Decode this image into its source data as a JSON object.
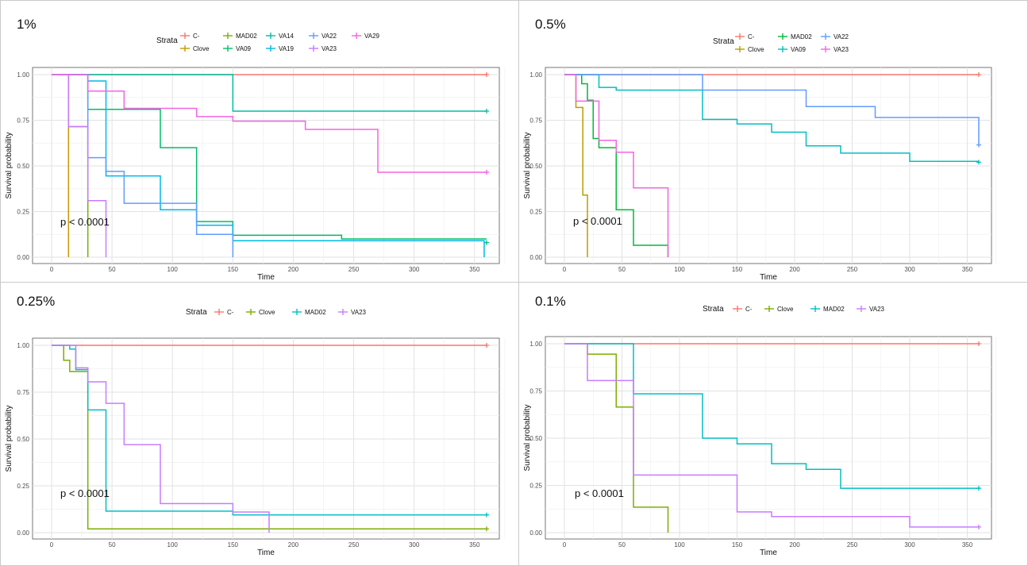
{
  "colors": {
    "C-": "#F8766D",
    "Clove": "#C49A00",
    "MAD02": "#53B400",
    "VA09": "#00C094",
    "VA14": "#00C094",
    "VA19": "#00B6EB",
    "VA22": "#619CFF",
    "VA23": "#DF68E0",
    "VA29": "#FB61D7"
  },
  "chart_data": [
    {
      "type": "line",
      "label": "1%",
      "xlabel": "Time",
      "ylabel": "Survival probability",
      "xlim": [
        0,
        360
      ],
      "ylim": [
        0,
        1
      ],
      "x_ticks": [
        0,
        50,
        100,
        150,
        200,
        250,
        300,
        350
      ],
      "y_ticks": [
        "0.00",
        "0.25",
        "0.50",
        "0.75",
        "1.00"
      ],
      "grid": true,
      "pvalue": "p < 0.0001",
      "legend_title": "Strata",
      "legend_position": "top",
      "legend_rows": [
        [
          "C-",
          "MAD02",
          "VA14",
          "VA22",
          "VA29"
        ],
        [
          "Clove",
          "VA09",
          "VA19",
          "VA23"
        ]
      ],
      "series": [
        {
          "name": "C-",
          "color": "#F8766D",
          "steps": [
            [
              0,
              1.0
            ],
            [
              360,
              1.0
            ]
          ],
          "censor": [
            360,
            1.0
          ]
        },
        {
          "name": "Clove",
          "color": "#C49A00",
          "steps": [
            [
              0,
              1.0
            ],
            [
              14,
              0.0
            ]
          ]
        },
        {
          "name": "MAD02",
          "color": "#7CAE00",
          "steps": [
            [
              0,
              1.0
            ],
            [
              14,
              0.715
            ],
            [
              30,
              0.0
            ]
          ]
        },
        {
          "name": "VA09",
          "color": "#00BE67",
          "steps": [
            [
              0,
              1.0
            ],
            [
              30,
              0.81
            ],
            [
              90,
              0.6
            ],
            [
              120,
              0.195
            ],
            [
              150,
              0.12
            ],
            [
              240,
              0.1
            ],
            [
              360,
              0.1
            ]
          ],
          "censor": [
            360,
            0.08
          ]
        },
        {
          "name": "VA14",
          "color": "#00BFA0",
          "steps": [
            [
              0,
              1.0
            ],
            [
              150,
              0.8
            ],
            [
              360,
              0.8
            ]
          ],
          "censor": [
            360,
            0.8
          ]
        },
        {
          "name": "VA19",
          "color": "#00B8E7",
          "steps": [
            [
              0,
              1.0
            ],
            [
              30,
              0.965
            ],
            [
              45,
              0.445
            ],
            [
              90,
              0.26
            ],
            [
              120,
              0.175
            ],
            [
              150,
              0.09
            ],
            [
              358,
              0.0
            ]
          ]
        },
        {
          "name": "VA22",
          "color": "#619CFF",
          "steps": [
            [
              0,
              1.0
            ],
            [
              30,
              0.545
            ],
            [
              45,
              0.47
            ],
            [
              60,
              0.295
            ],
            [
              120,
              0.125
            ],
            [
              150,
              0.0
            ]
          ]
        },
        {
          "name": "VA23",
          "color": "#C77CFF",
          "steps": [
            [
              0,
              1.0
            ],
            [
              14,
              0.715
            ],
            [
              30,
              0.31
            ],
            [
              45,
              0.0
            ]
          ]
        },
        {
          "name": "VA29",
          "color": "#F564E3",
          "steps": [
            [
              0,
              1.0
            ],
            [
              30,
              0.91
            ],
            [
              60,
              0.815
            ],
            [
              120,
              0.77
            ],
            [
              150,
              0.745
            ],
            [
              210,
              0.7
            ],
            [
              270,
              0.465
            ],
            [
              360,
              0.465
            ]
          ],
          "censor": [
            360,
            0.465
          ]
        }
      ]
    },
    {
      "type": "line",
      "label": "0.5%",
      "xlabel": "Time",
      "ylabel": "Survival probability",
      "xlim": [
        0,
        360
      ],
      "ylim": [
        0,
        1
      ],
      "x_ticks": [
        0,
        50,
        100,
        150,
        200,
        250,
        300,
        350
      ],
      "y_ticks": [
        "0.00",
        "0.25",
        "0.50",
        "0.75",
        "1.00"
      ],
      "grid": true,
      "pvalue": "p < 0.0001",
      "legend_title": "Strata",
      "legend_position": "top",
      "legend_rows": [
        [
          "C-",
          "MAD02",
          "VA22"
        ],
        [
          "Clove",
          "VA09",
          "VA23"
        ]
      ],
      "series": [
        {
          "name": "C-",
          "color": "#F8766D",
          "steps": [
            [
              0,
              1.0
            ],
            [
              360,
              1.0
            ]
          ],
          "censor": [
            360,
            1.0
          ]
        },
        {
          "name": "Clove",
          "color": "#B79F00",
          "steps": [
            [
              0,
              1.0
            ],
            [
              10,
              0.82
            ],
            [
              16,
              0.34
            ],
            [
              20,
              0.0
            ]
          ]
        },
        {
          "name": "MAD02",
          "color": "#00BA38",
          "steps": [
            [
              0,
              1.0
            ],
            [
              15,
              0.95
            ],
            [
              20,
              0.86
            ],
            [
              25,
              0.65
            ],
            [
              30,
              0.6
            ],
            [
              45,
              0.26
            ],
            [
              60,
              0.065
            ],
            [
              90,
              0.0
            ]
          ]
        },
        {
          "name": "VA09",
          "color": "#00BFC4",
          "steps": [
            [
              0,
              1.0
            ],
            [
              30,
              0.93
            ],
            [
              45,
              0.915
            ],
            [
              120,
              0.755
            ],
            [
              150,
              0.73
            ],
            [
              180,
              0.685
            ],
            [
              210,
              0.61
            ],
            [
              240,
              0.57
            ],
            [
              300,
              0.525
            ],
            [
              360,
              0.525
            ]
          ],
          "censor": [
            360,
            0.52
          ]
        },
        {
          "name": "VA22",
          "color": "#619CFF",
          "steps": [
            [
              0,
              1.0
            ],
            [
              120,
              0.915
            ],
            [
              210,
              0.825
            ],
            [
              270,
              0.765
            ],
            [
              360,
              0.615
            ]
          ],
          "censor": [
            360,
            0.615
          ]
        },
        {
          "name": "VA23",
          "color": "#F564E3",
          "steps": [
            [
              0,
              1.0
            ],
            [
              10,
              0.855
            ],
            [
              30,
              0.64
            ],
            [
              45,
              0.575
            ],
            [
              60,
              0.38
            ],
            [
              90,
              0.0
            ]
          ]
        }
      ]
    },
    {
      "type": "line",
      "label": "0.25%",
      "xlabel": "Time",
      "ylabel": "Survival probability",
      "xlim": [
        0,
        360
      ],
      "ylim": [
        0,
        1
      ],
      "x_ticks": [
        0,
        50,
        100,
        150,
        200,
        250,
        300,
        350
      ],
      "y_ticks": [
        "0.00",
        "0.25",
        "0.50",
        "0.75",
        "1.00"
      ],
      "grid": true,
      "pvalue": "p < 0.0001",
      "legend_title": "Strata",
      "legend_position": "top",
      "legend_rows": [
        [
          "C-",
          "Clove",
          "MAD02",
          "VA23"
        ]
      ],
      "series": [
        {
          "name": "C-",
          "color": "#F8766D",
          "steps": [
            [
              0,
              1.0
            ],
            [
              360,
              1.0
            ]
          ],
          "censor": [
            360,
            1.0
          ]
        },
        {
          "name": "Clove",
          "color": "#7CAE00",
          "steps": [
            [
              0,
              1.0
            ],
            [
              10,
              0.92
            ],
            [
              15,
              0.86
            ],
            [
              30,
              0.02
            ],
            [
              360,
              0.02
            ]
          ],
          "censor": [
            360,
            0.02
          ]
        },
        {
          "name": "MAD02",
          "color": "#00BFC4",
          "steps": [
            [
              0,
              1.0
            ],
            [
              15,
              0.98
            ],
            [
              20,
              0.87
            ],
            [
              30,
              0.655
            ],
            [
              45,
              0.115
            ],
            [
              150,
              0.095
            ],
            [
              360,
              0.095
            ]
          ],
          "censor": [
            360,
            0.095
          ]
        },
        {
          "name": "VA23",
          "color": "#C77CFF",
          "steps": [
            [
              0,
              1.0
            ],
            [
              20,
              0.88
            ],
            [
              30,
              0.805
            ],
            [
              45,
              0.69
            ],
            [
              60,
              0.47
            ],
            [
              90,
              0.155
            ],
            [
              150,
              0.11
            ],
            [
              180,
              0.0
            ]
          ]
        }
      ]
    },
    {
      "type": "line",
      "label": "0.1%",
      "xlabel": "Time",
      "ylabel": "Survival probability",
      "xlim": [
        0,
        360
      ],
      "ylim": [
        0,
        1
      ],
      "x_ticks": [
        0,
        50,
        100,
        150,
        200,
        250,
        300,
        350
      ],
      "y_ticks": [
        "0.00",
        "0.25",
        "0.50",
        "0.75",
        "1.00"
      ],
      "grid": true,
      "pvalue": "p < 0.0001",
      "legend_title": "Strata",
      "legend_position": "top",
      "legend_rows": [
        [
          "C-",
          "Clove",
          "MAD02",
          "VA23"
        ]
      ],
      "series": [
        {
          "name": "C-",
          "color": "#F8766D",
          "steps": [
            [
              0,
              1.0
            ],
            [
              360,
              1.0
            ]
          ],
          "censor": [
            360,
            1.0
          ]
        },
        {
          "name": "Clove",
          "color": "#7CAE00",
          "steps": [
            [
              0,
              1.0
            ],
            [
              20,
              0.945
            ],
            [
              45,
              0.665
            ],
            [
              60,
              0.135
            ],
            [
              90,
              0.0
            ]
          ]
        },
        {
          "name": "MAD02",
          "color": "#00BFC4",
          "steps": [
            [
              0,
              1.0
            ],
            [
              60,
              0.735
            ],
            [
              120,
              0.5
            ],
            [
              150,
              0.47
            ],
            [
              180,
              0.365
            ],
            [
              210,
              0.335
            ],
            [
              240,
              0.235
            ],
            [
              360,
              0.235
            ]
          ],
          "censor": [
            360,
            0.235
          ]
        },
        {
          "name": "VA23",
          "color": "#C77CFF",
          "steps": [
            [
              0,
              1.0
            ],
            [
              20,
              0.805
            ],
            [
              60,
              0.305
            ],
            [
              150,
              0.11
            ],
            [
              180,
              0.085
            ],
            [
              300,
              0.03
            ],
            [
              360,
              0.03
            ]
          ],
          "censor": [
            360,
            0.03
          ]
        }
      ]
    }
  ]
}
